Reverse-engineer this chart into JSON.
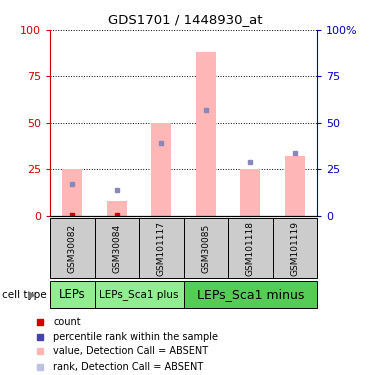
{
  "title": "GDS1701 / 1448930_at",
  "samples": [
    "GSM30082",
    "GSM30084",
    "GSM101117",
    "GSM30085",
    "GSM101118",
    "GSM101119"
  ],
  "bar_values": [
    25,
    8,
    50,
    88,
    25,
    32
  ],
  "rank_values": [
    17,
    14,
    39,
    57,
    29,
    34
  ],
  "count_vals": [
    0.5,
    0.3,
    null,
    null,
    null,
    null
  ],
  "bar_color": "#ffb6b6",
  "rank_color": "#8888bb",
  "count_color": "#cc0000",
  "ylim": [
    0,
    100
  ],
  "yticks": [
    0,
    25,
    50,
    75,
    100
  ],
  "left_axis_color": "#cc0000",
  "right_axis_color": "#0000bb",
  "bar_width": 0.45,
  "sample_area_bg": "#cccccc",
  "ct_colors": [
    "#90ee90",
    "#90ee90",
    "#55cc55"
  ],
  "ct_labels": [
    "LEPs",
    "LEPs_Sca1 plus",
    "LEPs_Sca1 minus"
  ],
  "ct_ranges": [
    [
      0,
      1
    ],
    [
      1,
      3
    ],
    [
      3,
      6
    ]
  ],
  "ct_fontsizes": [
    8.5,
    7.5,
    9
  ],
  "legend_items": [
    {
      "marker_color": "#cc0000",
      "text": "count"
    },
    {
      "marker_color": "#4444aa",
      "text": "percentile rank within the sample"
    },
    {
      "marker_color": "#ffb6b6",
      "text": "value, Detection Call = ABSENT"
    },
    {
      "marker_color": "#c0c0e0",
      "text": "rank, Detection Call = ABSENT"
    }
  ]
}
